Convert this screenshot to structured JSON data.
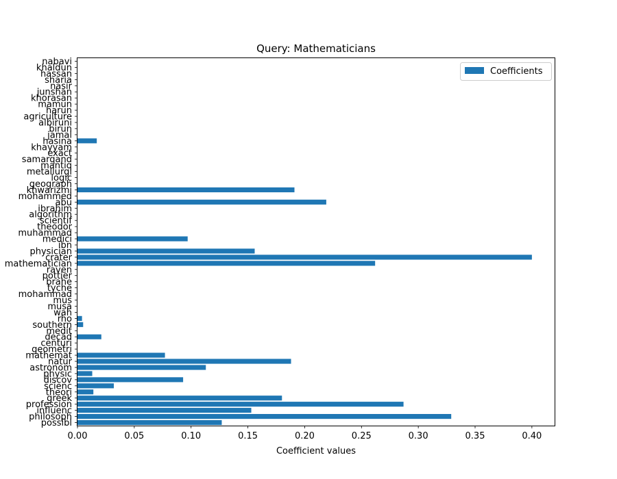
{
  "chart_data": {
    "type": "bar",
    "orientation": "horizontal",
    "title": "Query: Mathematicians",
    "xlabel": "Coefficient values",
    "ylabel": "",
    "xlim": [
      0.0,
      0.42
    ],
    "x_ticks": [
      "0.00",
      "0.05",
      "0.10",
      "0.15",
      "0.20",
      "0.25",
      "0.30",
      "0.35",
      "0.40"
    ],
    "legend": {
      "label": "Coefficients",
      "position": "top-right"
    },
    "grid": false,
    "bar_color": "#1f77b4",
    "categories": [
      "possibl",
      "philosoph",
      "influenc",
      "profession",
      "greek",
      "theori",
      "scienc",
      "discov",
      "physic",
      "astronom",
      "natur",
      "mathemat",
      "geometri",
      "centuri",
      "decad",
      "medit",
      "southern",
      "rho",
      "wah",
      "musa",
      "mus",
      "mohammad",
      "tyche",
      "brahe",
      "pottier",
      "raven",
      "mathematician",
      "crater",
      "physician",
      "ibn",
      "medici",
      "muhammad",
      "theodor",
      "scientif",
      "algorithm",
      "ibrahim",
      "abu",
      "mohammed",
      "khwarizmi",
      "geograph",
      "logic",
      "metallurgi",
      "mantiq",
      "samarqand",
      "exact",
      "khayyam",
      "hasina",
      "jamal",
      "birun",
      "albiruni",
      "agriculture",
      "harun",
      "mamun",
      "khorasan",
      "junshan",
      "nasir",
      "sharia",
      "hassan",
      "khaldun",
      "nabavi"
    ],
    "values": [
      0.127,
      0.329,
      0.153,
      0.287,
      0.18,
      0.014,
      0.032,
      0.093,
      0.013,
      0.113,
      0.188,
      0.077,
      0.0,
      0.0,
      0.021,
      0.0,
      0.005,
      0.004,
      0.0,
      0.0,
      0.0,
      0.0,
      0.0,
      0.0,
      0.0,
      0.0,
      0.262,
      0.4,
      0.156,
      0.0,
      0.097,
      0.0,
      0.0,
      0.0,
      0.0,
      0.0,
      0.219,
      0.0,
      0.191,
      0.0,
      0.0,
      0.0,
      0.0,
      0.0,
      0.0,
      0.0,
      0.017,
      0.0,
      0.0,
      0.0,
      0.0,
      0.0,
      0.0,
      0.0,
      0.0,
      0.0,
      0.0,
      0.0,
      0.0,
      0.0
    ]
  }
}
